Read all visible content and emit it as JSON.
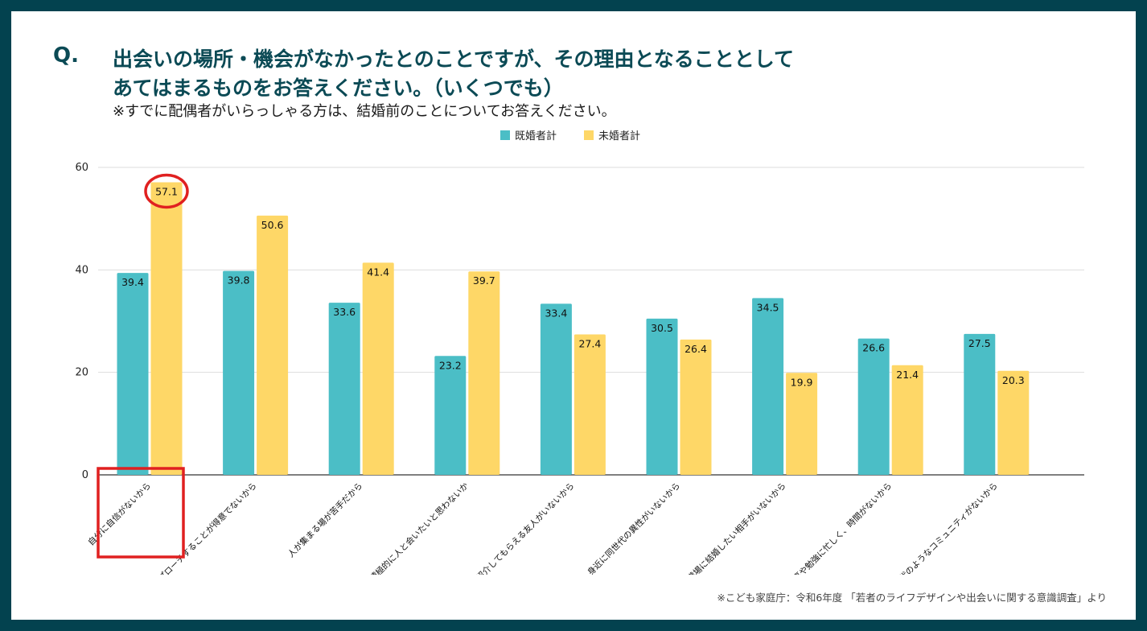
{
  "header": {
    "q_label": "Q.",
    "title_line1": "出会いの場所・機会がなかったとのことですが、その理由となることとして",
    "title_line2": "あてはまるものをお答えください。（いくつでも）",
    "note": "※すでに配偶者がいらっしゃる方は、結婚前のことについてお答えください。"
  },
  "source": "※こども家庭庁：令和6年度 「若者のライフデザインや出会いに関する意識調査」より",
  "colors": {
    "married": "#4bbec6",
    "unmarried": "#fed767",
    "highlight": "#e02020",
    "grid": "#dddddd",
    "axis": "#333333"
  },
  "chart_data": {
    "type": "bar",
    "title": "",
    "xlabel": "",
    "ylabel": "",
    "ylim": [
      0,
      60
    ],
    "yticks": [
      0,
      20,
      40,
      60
    ],
    "legend_position": "top-center",
    "categories": [
      "自分に自信がないから",
      "アプローチすることが得意でないから",
      "人が集まる場が苦手だから",
      "積極的に人と会いたいと思わないか",
      "紹介してもらえる友人がいないから",
      "身近に同世代の異性がいないから",
      "職場に結婚したい相手がいないから",
      "仕事や勉強に忙しく、時間がないから",
      "学生時代のようなコミュニティがないから"
    ],
    "series": [
      {
        "name": "既婚者計",
        "values": [
          39.4,
          39.8,
          33.6,
          23.2,
          33.4,
          30.5,
          34.5,
          26.6,
          27.5
        ]
      },
      {
        "name": "未婚者計",
        "values": [
          57.1,
          50.6,
          41.4,
          39.7,
          27.4,
          26.4,
          19.9,
          21.4,
          20.3
        ]
      }
    ],
    "annotations": [
      {
        "type": "circle",
        "series": 1,
        "category": 0,
        "note": "highlighted value"
      },
      {
        "type": "box",
        "category": 0,
        "note": "highlighted category label"
      }
    ]
  }
}
